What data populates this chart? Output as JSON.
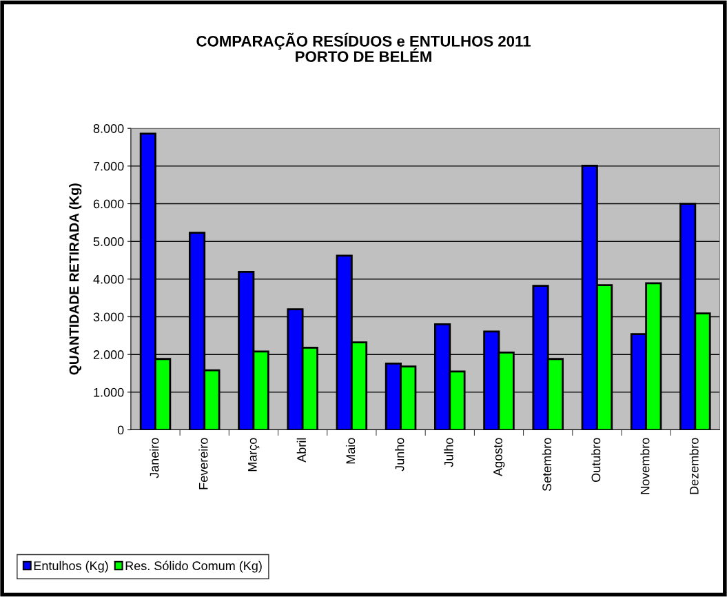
{
  "chart_data": {
    "type": "bar",
    "title": "COMPARAÇÃO RESÍDUOS e ENTULHOS 2011\nPORTO DE BELÉM",
    "ylabel": "QUANTIDADE RETIRADA (Kg)",
    "categories": [
      "Janeiro",
      "Fevereiro",
      "Março",
      "Abril",
      "Maio",
      "Junho",
      "Julho",
      "Agosto",
      "Setembro",
      "Outubro",
      "Novembro",
      "Dezembro"
    ],
    "series": [
      {
        "name": "Entulhos (Kg)",
        "color": "#0000ff",
        "values": [
          7860,
          5230,
          4190,
          3200,
          4620,
          1760,
          2800,
          2610,
          3820,
          7010,
          2540,
          6000
        ]
      },
      {
        "name": "Res. Sólido Comum (Kg)",
        "color": "#00ff00",
        "values": [
          1880,
          1580,
          2080,
          2180,
          2320,
          1680,
          1550,
          2050,
          1880,
          3840,
          3890,
          3090
        ]
      }
    ],
    "ylim": [
      0,
      8000
    ],
    "yticks": [
      0,
      {
        "value": 1000,
        "label": "1.000"
      },
      {
        "value": 2000,
        "label": "2.000"
      },
      {
        "value": 3000,
        "label": "3.000"
      },
      {
        "value": 4000,
        "label": "4.000"
      },
      {
        "value": 5000,
        "label": "5.000"
      },
      {
        "value": 6000,
        "label": "6.000"
      },
      {
        "value": 7000,
        "label": "7.000"
      },
      {
        "value": 8000,
        "label": "8.000"
      }
    ],
    "grid": "y",
    "legend": "bottom left"
  }
}
